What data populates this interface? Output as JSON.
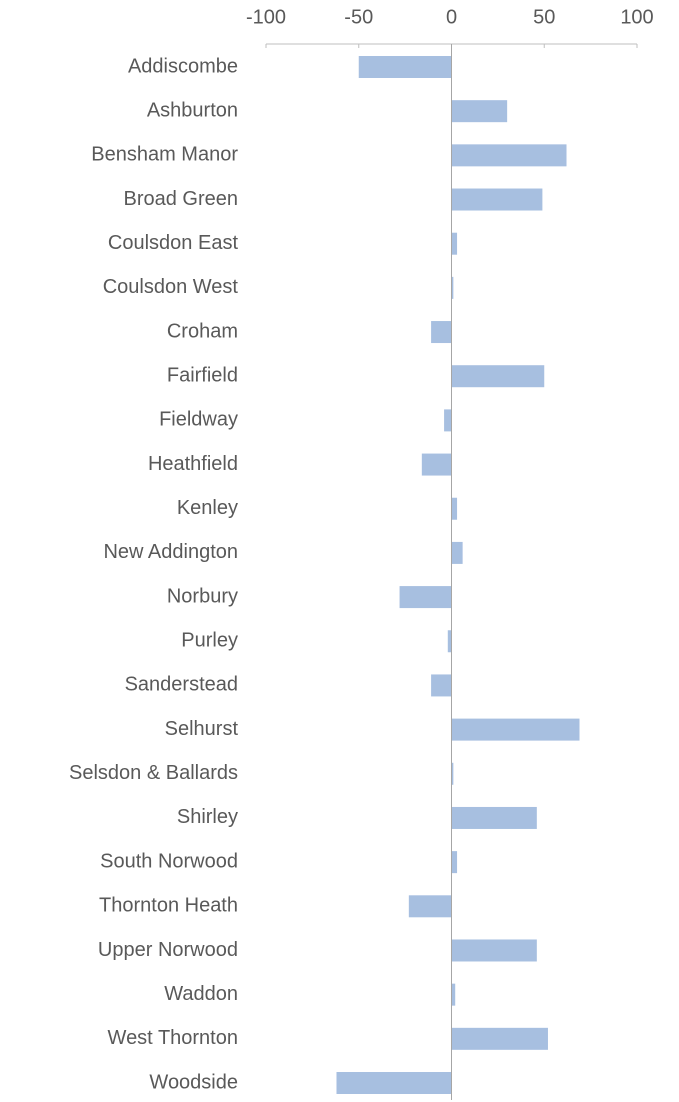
{
  "chart_data": {
    "type": "bar",
    "orientation": "horizontal",
    "categories": [
      "Addiscombe",
      "Ashburton",
      "Bensham Manor",
      "Broad Green",
      "Coulsdon East",
      "Coulsdon West",
      "Croham",
      "Fairfield",
      "Fieldway",
      "Heathfield",
      "Kenley",
      "New Addington",
      "Norbury",
      "Purley",
      "Sanderstead",
      "Selhurst",
      "Selsdon & Ballards",
      "Shirley",
      "South Norwood",
      "Thornton Heath",
      "Upper Norwood",
      "Waddon",
      "West Thornton",
      "Woodside"
    ],
    "values": [
      -50,
      30,
      62,
      49,
      3,
      1,
      -11,
      50,
      -4,
      -16,
      3,
      6,
      -28,
      -2,
      -11,
      69,
      1,
      46,
      3,
      -23,
      46,
      2,
      52,
      -62
    ],
    "color": "#a7bfe0",
    "xlim": [
      -100,
      100
    ],
    "xticks": [
      -100,
      -50,
      0,
      50,
      100
    ],
    "grid": false
  }
}
